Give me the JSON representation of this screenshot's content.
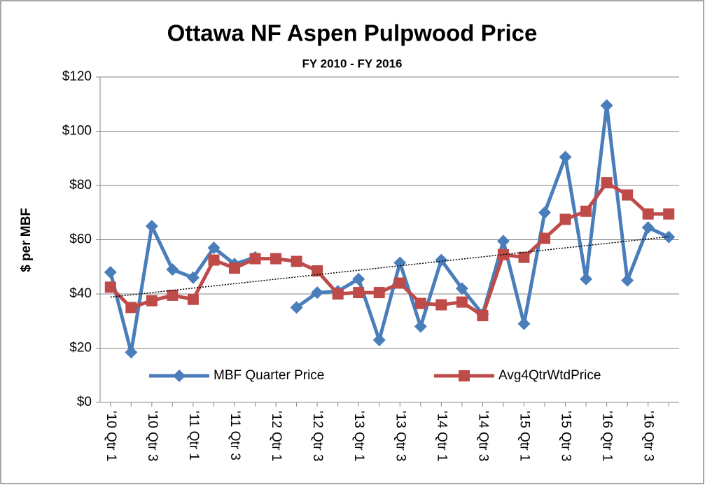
{
  "chart_data": {
    "type": "line",
    "title": "Ottawa NF Aspen Pulpwood Price",
    "subtitle": "FY 2010 - FY 2016",
    "y_label": "$ per MBF",
    "categories": [
      "'10 Qtr 1",
      null,
      "'10 Qtr 3",
      null,
      "'11 Qtr 1",
      null,
      "'11 Qtr 3",
      null,
      "'12 Qtr 1",
      null,
      "'12 Qtr 3",
      null,
      "'13 Qtr 1",
      null,
      "'13 Qtr 3",
      null,
      "'14 Qtr 1",
      null,
      "'14 Qtr 3",
      null,
      "'15 Qtr 1",
      null,
      "'15 Qtr 3",
      null,
      "'16 Qtr 1",
      null,
      "'16 Qtr 3",
      null
    ],
    "series": [
      {
        "name": "MBF Quarter Price",
        "color": "#4a7ebb",
        "marker": "diamond",
        "values": [
          48,
          18.5,
          65,
          49,
          46,
          57,
          51,
          53.5,
          null,
          35,
          40.5,
          41,
          45.5,
          23,
          51.5,
          28,
          52.5,
          42,
          32.5,
          59.5,
          29,
          70,
          90.5,
          45.5,
          109.5,
          45,
          64.5,
          61
        ]
      },
      {
        "name": "Avg4QtrWtdPrice",
        "color": "#be4b48",
        "marker": "square",
        "values": [
          42.5,
          35,
          37.5,
          39.5,
          38,
          52.5,
          49.5,
          53,
          53,
          52,
          48.5,
          40,
          40.5,
          40.5,
          44,
          36.5,
          36,
          37,
          32,
          54.5,
          53.5,
          60.5,
          67.5,
          70.5,
          81,
          76.5,
          69.5,
          69.5
        ]
      }
    ],
    "trendline": {
      "series": 0,
      "color": "#000000",
      "style": "dotted"
    },
    "ylim": [
      0,
      120
    ],
    "yticks": [
      {
        "value": 0,
        "label": "$0"
      },
      {
        "value": 20,
        "label": "$20"
      },
      {
        "value": 40,
        "label": "$40"
      },
      {
        "value": 60,
        "label": "$60"
      },
      {
        "value": 80,
        "label": "$80"
      },
      {
        "value": 100,
        "label": "$100"
      },
      {
        "value": 120,
        "label": "$120"
      }
    ],
    "grid": true,
    "legend": "bottom"
  }
}
